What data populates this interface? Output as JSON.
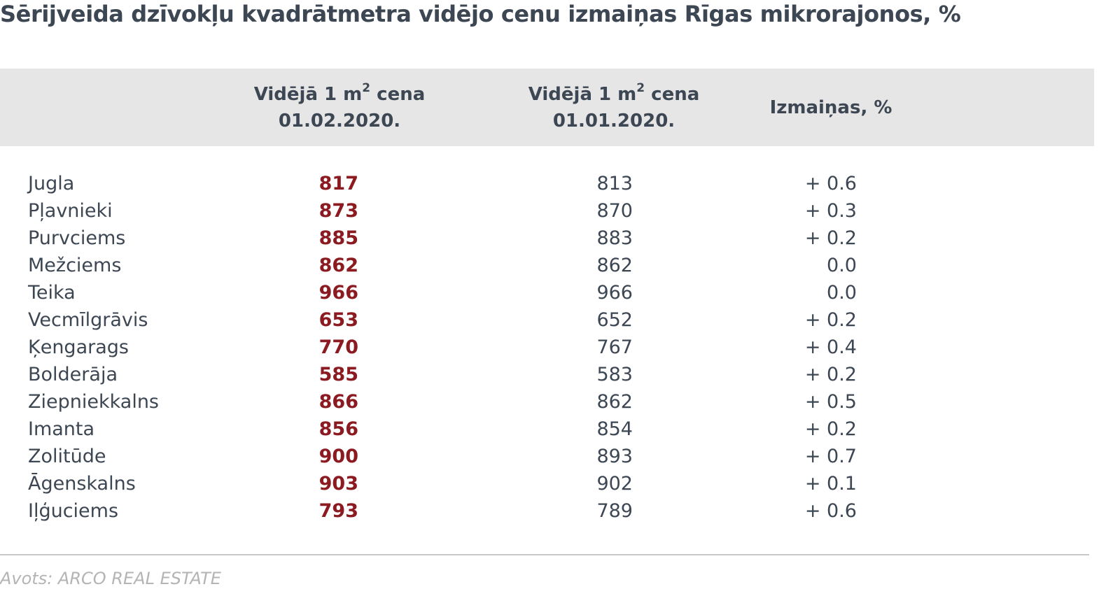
{
  "title": "Sērijveida dzīvokļu kvadrātmetra vidējo cenu izmaiņas Rīgas mikrorajonos, %",
  "header": {
    "col1_line1_pre": "Vidējā 1 m",
    "col1_sup": "2",
    "col1_line1_post": " cena",
    "col1_line2": "01.02.2020.",
    "col2_line1_pre": "Vidējā 1 m",
    "col2_sup": "2",
    "col2_line1_post": " cena",
    "col2_line2": "01.01.2020.",
    "col3": "Izmaiņas, %"
  },
  "rows": [
    {
      "name": "Jugla",
      "v1": "817",
      "v2": "813",
      "v3": "+ 0.6"
    },
    {
      "name": "Pļavnieki",
      "v1": "873",
      "v2": "870",
      "v3": "+ 0.3"
    },
    {
      "name": "Purvciems",
      "v1": "885",
      "v2": "883",
      "v3": "+ 0.2"
    },
    {
      "name": "Mežciems",
      "v1": "862",
      "v2": "862",
      "v3": "0.0"
    },
    {
      "name": "Teika",
      "v1": "966",
      "v2": "966",
      "v3": "0.0"
    },
    {
      "name": "Vecmīlgrāvis",
      "v1": "653",
      "v2": "652",
      "v3": "+ 0.2"
    },
    {
      "name": "Ķengarags",
      "v1": "770",
      "v2": "767",
      "v3": "+ 0.4"
    },
    {
      "name": "Bolderāja",
      "v1": "585",
      "v2": "583",
      "v3": "+ 0.2"
    },
    {
      "name": "Ziepniekkalns",
      "v1": "866",
      "v2": "862",
      "v3": "+ 0.5"
    },
    {
      "name": "Imanta",
      "v1": "856",
      "v2": "854",
      "v3": "+ 0.2"
    },
    {
      "name": "Zolitūde",
      "v1": "900",
      "v2": "893",
      "v3": "+ 0.7"
    },
    {
      "name": "Āgenskalns",
      "v1": "903",
      "v2": "902",
      "v3": "+ 0.1"
    },
    {
      "name": "Iļģuciems",
      "v1": "793",
      "v2": "789",
      "v3": "+ 0.6"
    }
  ],
  "source": "Avots: ARCO REAL ESTATE",
  "colors": {
    "title_text": "#3d4753",
    "header_band": "#e6e6e6",
    "highlight_value": "#8b1a21",
    "source_text": "#b4b4b4"
  },
  "chart_data": {
    "type": "table",
    "columns": [
      "",
      "Vidējā 1 m2 cena 01.02.2020.",
      "Vidējā 1 m2 cena 01.01.2020.",
      "Izmaiņas, %"
    ],
    "categories": [
      "Jugla",
      "Pļavnieki",
      "Purvciems",
      "Mežciems",
      "Teika",
      "Vecmīlgrāvis",
      "Ķengarags",
      "Bolderāja",
      "Ziepniekkalns",
      "Imanta",
      "Zolitūde",
      "Āgenskalns",
      "Iļģuciems"
    ],
    "series": [
      {
        "name": "Vidējā 1 m2 cena 01.02.2020.",
        "values": [
          817,
          873,
          885,
          862,
          966,
          653,
          770,
          585,
          866,
          856,
          900,
          903,
          793
        ]
      },
      {
        "name": "Vidējā 1 m2 cena 01.01.2020.",
        "values": [
          813,
          870,
          883,
          862,
          966,
          652,
          767,
          583,
          862,
          854,
          893,
          902,
          789
        ]
      },
      {
        "name": "Izmaiņas, %",
        "values": [
          0.6,
          0.3,
          0.2,
          0.0,
          0.0,
          0.2,
          0.4,
          0.2,
          0.5,
          0.2,
          0.7,
          0.1,
          0.6
        ]
      }
    ]
  }
}
